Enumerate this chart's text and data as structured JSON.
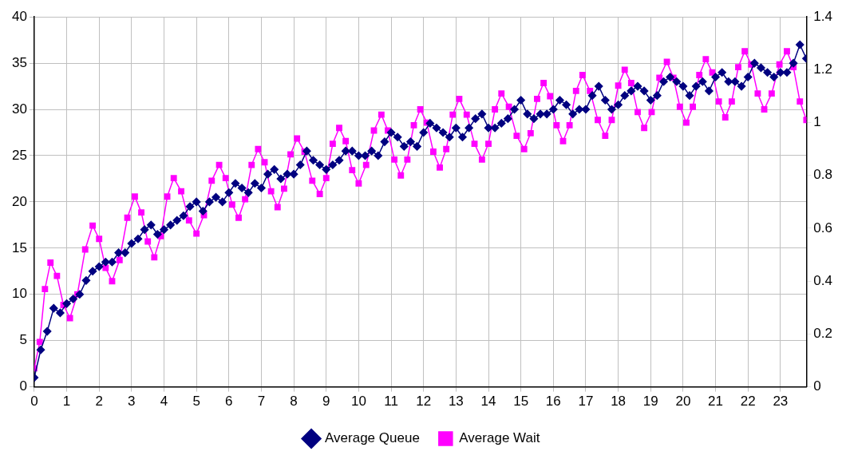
{
  "chart_data": {
    "type": "line",
    "xlim": [
      0,
      23.8
    ],
    "xticks": [
      0,
      1,
      2,
      3,
      4,
      5,
      6,
      7,
      8,
      9,
      10,
      11,
      12,
      13,
      14,
      15,
      16,
      17,
      18,
      19,
      20,
      21,
      22,
      23
    ],
    "ylim": [
      0,
      40
    ],
    "yticks": [
      0,
      5,
      10,
      15,
      20,
      25,
      30,
      35,
      40
    ],
    "y2lim": [
      0,
      1.4
    ],
    "y2ticks": [
      0,
      0.2,
      0.4,
      0.6,
      0.8,
      1,
      1.2,
      1.4
    ],
    "grid": true,
    "legend": "bottom",
    "series": [
      {
        "name": "Average Queue",
        "color": "#000080",
        "marker": "diamond",
        "x": [
          0,
          0.2,
          0.4,
          0.6,
          0.8,
          1,
          1.2,
          1.4,
          1.6,
          1.8,
          2,
          2.2,
          2.4,
          2.6,
          2.8,
          3,
          3.2,
          3.4,
          3.6,
          3.8,
          4,
          4.2,
          4.4,
          4.6,
          4.8,
          5,
          5.2,
          5.4,
          5.6,
          5.8,
          6,
          6.2,
          6.4,
          6.6,
          6.8,
          7,
          7.2,
          7.4,
          7.6,
          7.8,
          8,
          8.2,
          8.4,
          8.6,
          8.8,
          9,
          9.2,
          9.4,
          9.6,
          9.8,
          10,
          10.2,
          10.4,
          10.6,
          10.8,
          11,
          11.2,
          11.4,
          11.6,
          11.8,
          12,
          12.2,
          12.4,
          12.6,
          12.8,
          13,
          13.2,
          13.4,
          13.6,
          13.8,
          14,
          14.2,
          14.4,
          14.6,
          14.8,
          15,
          15.2,
          15.4,
          15.6,
          15.8,
          16,
          16.2,
          16.4,
          16.6,
          16.8,
          17,
          17.2,
          17.4,
          17.6,
          17.8,
          18,
          18.2,
          18.4,
          18.6,
          18.8,
          19,
          19.2,
          19.4,
          19.6,
          19.8,
          20,
          20.2,
          20.4,
          20.6,
          20.8,
          21,
          21.2,
          21.4,
          21.6,
          21.8,
          22,
          22.2,
          22.4,
          22.6,
          22.8,
          23,
          23.2,
          23.4,
          23.6,
          23.8
        ],
        "values": [
          1,
          4,
          6,
          8.5,
          8,
          9,
          9.5,
          10,
          11.5,
          12.5,
          13,
          13.5,
          13.5,
          14.5,
          14.5,
          15.5,
          16,
          17,
          17.5,
          16.5,
          17,
          17.5,
          18,
          18.5,
          19.5,
          20,
          19,
          20,
          20.5,
          20,
          21,
          22,
          21.5,
          21,
          22,
          21.5,
          23,
          23.5,
          22.5,
          23,
          23,
          24,
          25.5,
          24.5,
          24,
          23.5,
          24,
          24.5,
          25.5,
          25.5,
          25,
          25,
          25.5,
          25,
          26.5,
          27.5,
          27,
          26,
          26.5,
          26,
          27.5,
          28.5,
          28,
          27.5,
          27,
          28,
          27,
          28,
          29,
          29.5,
          28,
          28,
          28.5,
          29,
          30,
          31,
          29.5,
          29,
          29.5,
          29.5,
          30,
          31,
          30.5,
          29.5,
          30,
          30,
          31.5,
          32.5,
          31,
          30,
          30.5,
          31.5,
          32,
          32.5,
          32,
          31,
          31.5,
          33,
          33.5,
          33,
          32.5,
          31.5,
          32.5,
          33,
          32,
          33.5,
          34,
          33,
          33,
          32.5,
          33.5,
          35,
          34.5,
          34,
          33.5,
          34,
          34,
          35,
          37,
          35.5
        ]
      },
      {
        "name": "Average Wait",
        "color": "#ff00ff",
        "marker": "square",
        "axis": "y2",
        "x": [
          0,
          0.17,
          0.33,
          0.5,
          0.7,
          0.9,
          1.1,
          1.33,
          1.57,
          1.8,
          2,
          2.2,
          2.4,
          2.63,
          2.87,
          3.1,
          3.3,
          3.5,
          3.7,
          3.9,
          4.1,
          4.3,
          4.53,
          4.77,
          5,
          5.23,
          5.47,
          5.7,
          5.9,
          6.1,
          6.3,
          6.5,
          6.7,
          6.9,
          7.1,
          7.3,
          7.5,
          7.7,
          7.9,
          8.1,
          8.33,
          8.57,
          8.8,
          9,
          9.2,
          9.4,
          9.6,
          9.8,
          10,
          10.23,
          10.47,
          10.7,
          10.9,
          11.1,
          11.3,
          11.5,
          11.7,
          11.9,
          12.1,
          12.3,
          12.5,
          12.7,
          12.9,
          13.1,
          13.33,
          13.57,
          13.8,
          14,
          14.2,
          14.4,
          14.63,
          14.87,
          15.1,
          15.3,
          15.5,
          15.7,
          15.9,
          16.1,
          16.3,
          16.5,
          16.7,
          16.9,
          17.13,
          17.37,
          17.6,
          17.8,
          18,
          18.2,
          18.4,
          18.6,
          18.8,
          19.03,
          19.27,
          19.5,
          19.7,
          19.9,
          20.1,
          20.3,
          20.5,
          20.7,
          20.9,
          21.1,
          21.3,
          21.5,
          21.7,
          21.9,
          22.1,
          22.3,
          22.5,
          22.73,
          22.97,
          23.2,
          23.4,
          23.6,
          23.8
        ],
        "values": [
          0.07,
          0.17,
          0.37,
          0.47,
          0.42,
          0.31,
          0.26,
          0.35,
          0.52,
          0.61,
          0.56,
          0.45,
          0.4,
          0.48,
          0.64,
          0.72,
          0.66,
          0.55,
          0.49,
          0.57,
          0.72,
          0.79,
          0.74,
          0.63,
          0.58,
          0.65,
          0.78,
          0.84,
          0.79,
          0.69,
          0.64,
          0.71,
          0.84,
          0.9,
          0.85,
          0.74,
          0.68,
          0.75,
          0.88,
          0.94,
          0.89,
          0.78,
          0.73,
          0.79,
          0.92,
          0.98,
          0.93,
          0.82,
          0.77,
          0.84,
          0.97,
          1.03,
          0.97,
          0.86,
          0.8,
          0.86,
          0.99,
          1.05,
          1,
          0.89,
          0.83,
          0.9,
          1.03,
          1.09,
          1.03,
          0.92,
          0.86,
          0.92,
          1.05,
          1.11,
          1.06,
          0.95,
          0.9,
          0.96,
          1.09,
          1.15,
          1.1,
          0.99,
          0.93,
          0.99,
          1.12,
          1.18,
          1.12,
          1.01,
          0.95,
          1.01,
          1.14,
          1.2,
          1.15,
          1.04,
          0.98,
          1.04,
          1.17,
          1.23,
          1.17,
          1.06,
          1,
          1.06,
          1.18,
          1.24,
          1.19,
          1.08,
          1.02,
          1.08,
          1.21,
          1.27,
          1.22,
          1.11,
          1.05,
          1.11,
          1.22,
          1.27,
          1.21,
          1.08,
          1.01
        ]
      }
    ]
  }
}
